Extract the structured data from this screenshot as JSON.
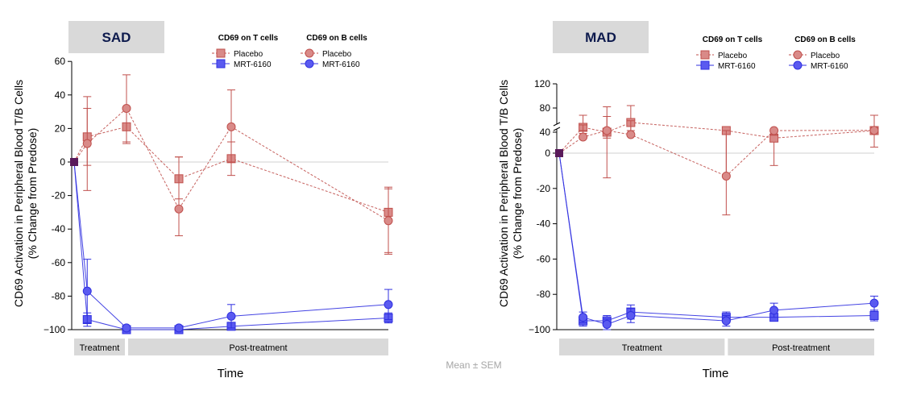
{
  "footnote": "Mean ± SEM",
  "colors": {
    "placebo": "#c0504d",
    "placebo_fill": "#d98a88",
    "drug": "#3030e0",
    "drug_fill": "#5a5af0",
    "predose": "#5a1a5a",
    "header_bg": "#d9d9d9",
    "phase_bg": "#d9d9d9",
    "zero_line": "#d0d0d0"
  },
  "chart_data": [
    {
      "type": "line",
      "title": "SAD",
      "xlabel": "Time",
      "ylabel": [
        "CD69 Activation in Peripheral Blood T/B Cells",
        "(% Change from Predose)"
      ],
      "ylim": [
        -100,
        60
      ],
      "yticks": [
        60,
        40,
        20,
        0,
        -20,
        -40,
        -60,
        -80,
        -100
      ],
      "ytick_labels": [
        "60",
        "40",
        "20",
        "0",
        "-20",
        "-40",
        "-60",
        "-80",
        "−100"
      ],
      "xlim": [
        0,
        6
      ],
      "phases": [
        {
          "label": "Treatment",
          "x": [
            0,
            1
          ]
        },
        {
          "label": "Post-treatment",
          "x": [
            1,
            6
          ]
        }
      ],
      "legend": {
        "groups": [
          {
            "title": "CD69 on T cells",
            "items": [
              {
                "label": "Placebo",
                "marker": "square",
                "series": "placebo"
              },
              {
                "label": "MRT-6160",
                "marker": "square",
                "series": "drug"
              }
            ]
          },
          {
            "title": "CD69 on B cells",
            "items": [
              {
                "label": "Placebo",
                "marker": "circle",
                "series": "placebo"
              },
              {
                "label": "MRT-6160",
                "marker": "circle",
                "series": "drug"
              }
            ]
          }
        ]
      },
      "series": [
        {
          "name": "CD69 on T cells – Placebo",
          "group": "placebo",
          "marker": "square",
          "dashed": true,
          "x": [
            0,
            0.25,
            1,
            2,
            3,
            6
          ],
          "y": [
            0,
            15,
            21,
            -10,
            2,
            -30
          ],
          "err_low": [
            0,
            17,
            10,
            12,
            10,
            25
          ],
          "err_high": [
            0,
            17,
            10,
            13,
            10,
            15
          ]
        },
        {
          "name": "CD69 on B cells – Placebo",
          "group": "placebo",
          "marker": "circle",
          "dashed": true,
          "x": [
            0,
            0.25,
            1,
            2,
            3,
            6
          ],
          "y": [
            0,
            11,
            32,
            -28,
            21,
            -35
          ],
          "err_low": [
            0,
            28,
            20,
            16,
            21,
            19
          ],
          "err_high": [
            0,
            28,
            20,
            31,
            22,
            19
          ]
        },
        {
          "name": "CD69 on T cells – MRT-6160",
          "group": "drug",
          "marker": "square",
          "dashed": false,
          "x": [
            0,
            0.25,
            1,
            2,
            3,
            6
          ],
          "y": [
            0,
            -94,
            -100,
            -100,
            -98,
            -93
          ],
          "err_low": [
            0,
            4,
            1,
            1,
            1,
            3
          ],
          "err_high": [
            0,
            4,
            1,
            1,
            1,
            3
          ]
        },
        {
          "name": "CD69 on B cells – MRT-6160",
          "group": "drug",
          "marker": "circle",
          "dashed": false,
          "x": [
            0,
            0.25,
            1,
            2,
            3,
            6
          ],
          "y": [
            0,
            -77,
            -99,
            -99,
            -92,
            -85
          ],
          "err_low": [
            0,
            19,
            1,
            1,
            7,
            9
          ],
          "err_high": [
            0,
            19,
            1,
            1,
            7,
            9
          ]
        }
      ]
    },
    {
      "type": "line",
      "title": "MAD",
      "xlabel": "Time",
      "ylabel": [
        "CD69 Activation in Peripheral Blood T/B Cells",
        "(% Change from Predose)"
      ],
      "ylim": [
        -100,
        120
      ],
      "axis_break": [
        15,
        30
      ],
      "yticks": [
        120,
        80,
        40,
        0,
        -20,
        -40,
        -60,
        -80,
        -100
      ],
      "ytick_labels": [
        "120",
        "80",
        "40",
        "0",
        "-20",
        "-40",
        "-60",
        "-80",
        "−100"
      ],
      "xlim": [
        0,
        6.6
      ],
      "phases": [
        {
          "label": "Treatment",
          "x": [
            0,
            3.5
          ]
        },
        {
          "label": "Post-treatment",
          "x": [
            3.5,
            6.6
          ]
        }
      ],
      "legend": {
        "groups": [
          {
            "title": "CD69 on T cells",
            "items": [
              {
                "label": "Placebo",
                "marker": "square",
                "series": "placebo"
              },
              {
                "label": "MRT-6160",
                "marker": "square",
                "series": "drug"
              }
            ]
          },
          {
            "title": "CD69 on B cells",
            "items": [
              {
                "label": "Placebo",
                "marker": "circle",
                "series": "placebo"
              },
              {
                "label": "MRT-6160",
                "marker": "circle",
                "series": "drug"
              }
            ]
          }
        ]
      },
      "series": [
        {
          "name": "CD69 on T cells – Placebo",
          "group": "placebo",
          "marker": "square",
          "dashed": true,
          "x": [
            0,
            0.5,
            1,
            1.5,
            3.5,
            4.5,
            6.6
          ],
          "y": [
            0,
            48,
            40,
            56,
            18,
            10,
            20
          ],
          "err_low": [
            0,
            10,
            30,
            20,
            30,
            17,
            16
          ],
          "err_high": [
            0,
            20,
            42,
            28,
            30,
            18,
            23
          ]
        },
        {
          "name": "CD69 on B cells – Placebo",
          "group": "placebo",
          "marker": "circle",
          "dashed": true,
          "x": [
            0,
            0.5,
            1,
            1.5,
            3.5,
            4.5,
            6.6
          ],
          "y": [
            0,
            32,
            26,
            36,
            -13,
            20,
            43
          ],
          "err_low": [
            0,
            14,
            40,
            20,
            22,
            8,
            24
          ],
          "err_high": [
            0,
            20,
            40,
            23,
            32,
            15,
            25
          ]
        },
        {
          "name": "CD69 on T cells – MRT-6160",
          "group": "drug",
          "marker": "square",
          "dashed": false,
          "x": [
            0,
            0.5,
            1,
            1.5,
            3.5,
            4.5,
            6.6
          ],
          "y": [
            0,
            -95,
            -95,
            -90,
            -93,
            -93,
            -92
          ],
          "err_low": [
            0,
            3,
            3,
            4,
            3,
            2,
            3
          ],
          "err_high": [
            0,
            3,
            3,
            4,
            3,
            2,
            3
          ]
        },
        {
          "name": "CD69 on B cells – MRT-6160",
          "group": "drug",
          "marker": "circle",
          "dashed": false,
          "x": [
            0,
            0.5,
            1,
            1.5,
            3.5,
            4.5,
            6.6
          ],
          "y": [
            0,
            -93,
            -97,
            -92,
            -95,
            -89,
            -85
          ],
          "err_low": [
            0,
            3,
            3,
            4,
            3,
            4,
            4
          ],
          "err_high": [
            0,
            3,
            3,
            4,
            3,
            4,
            4
          ]
        }
      ]
    }
  ]
}
